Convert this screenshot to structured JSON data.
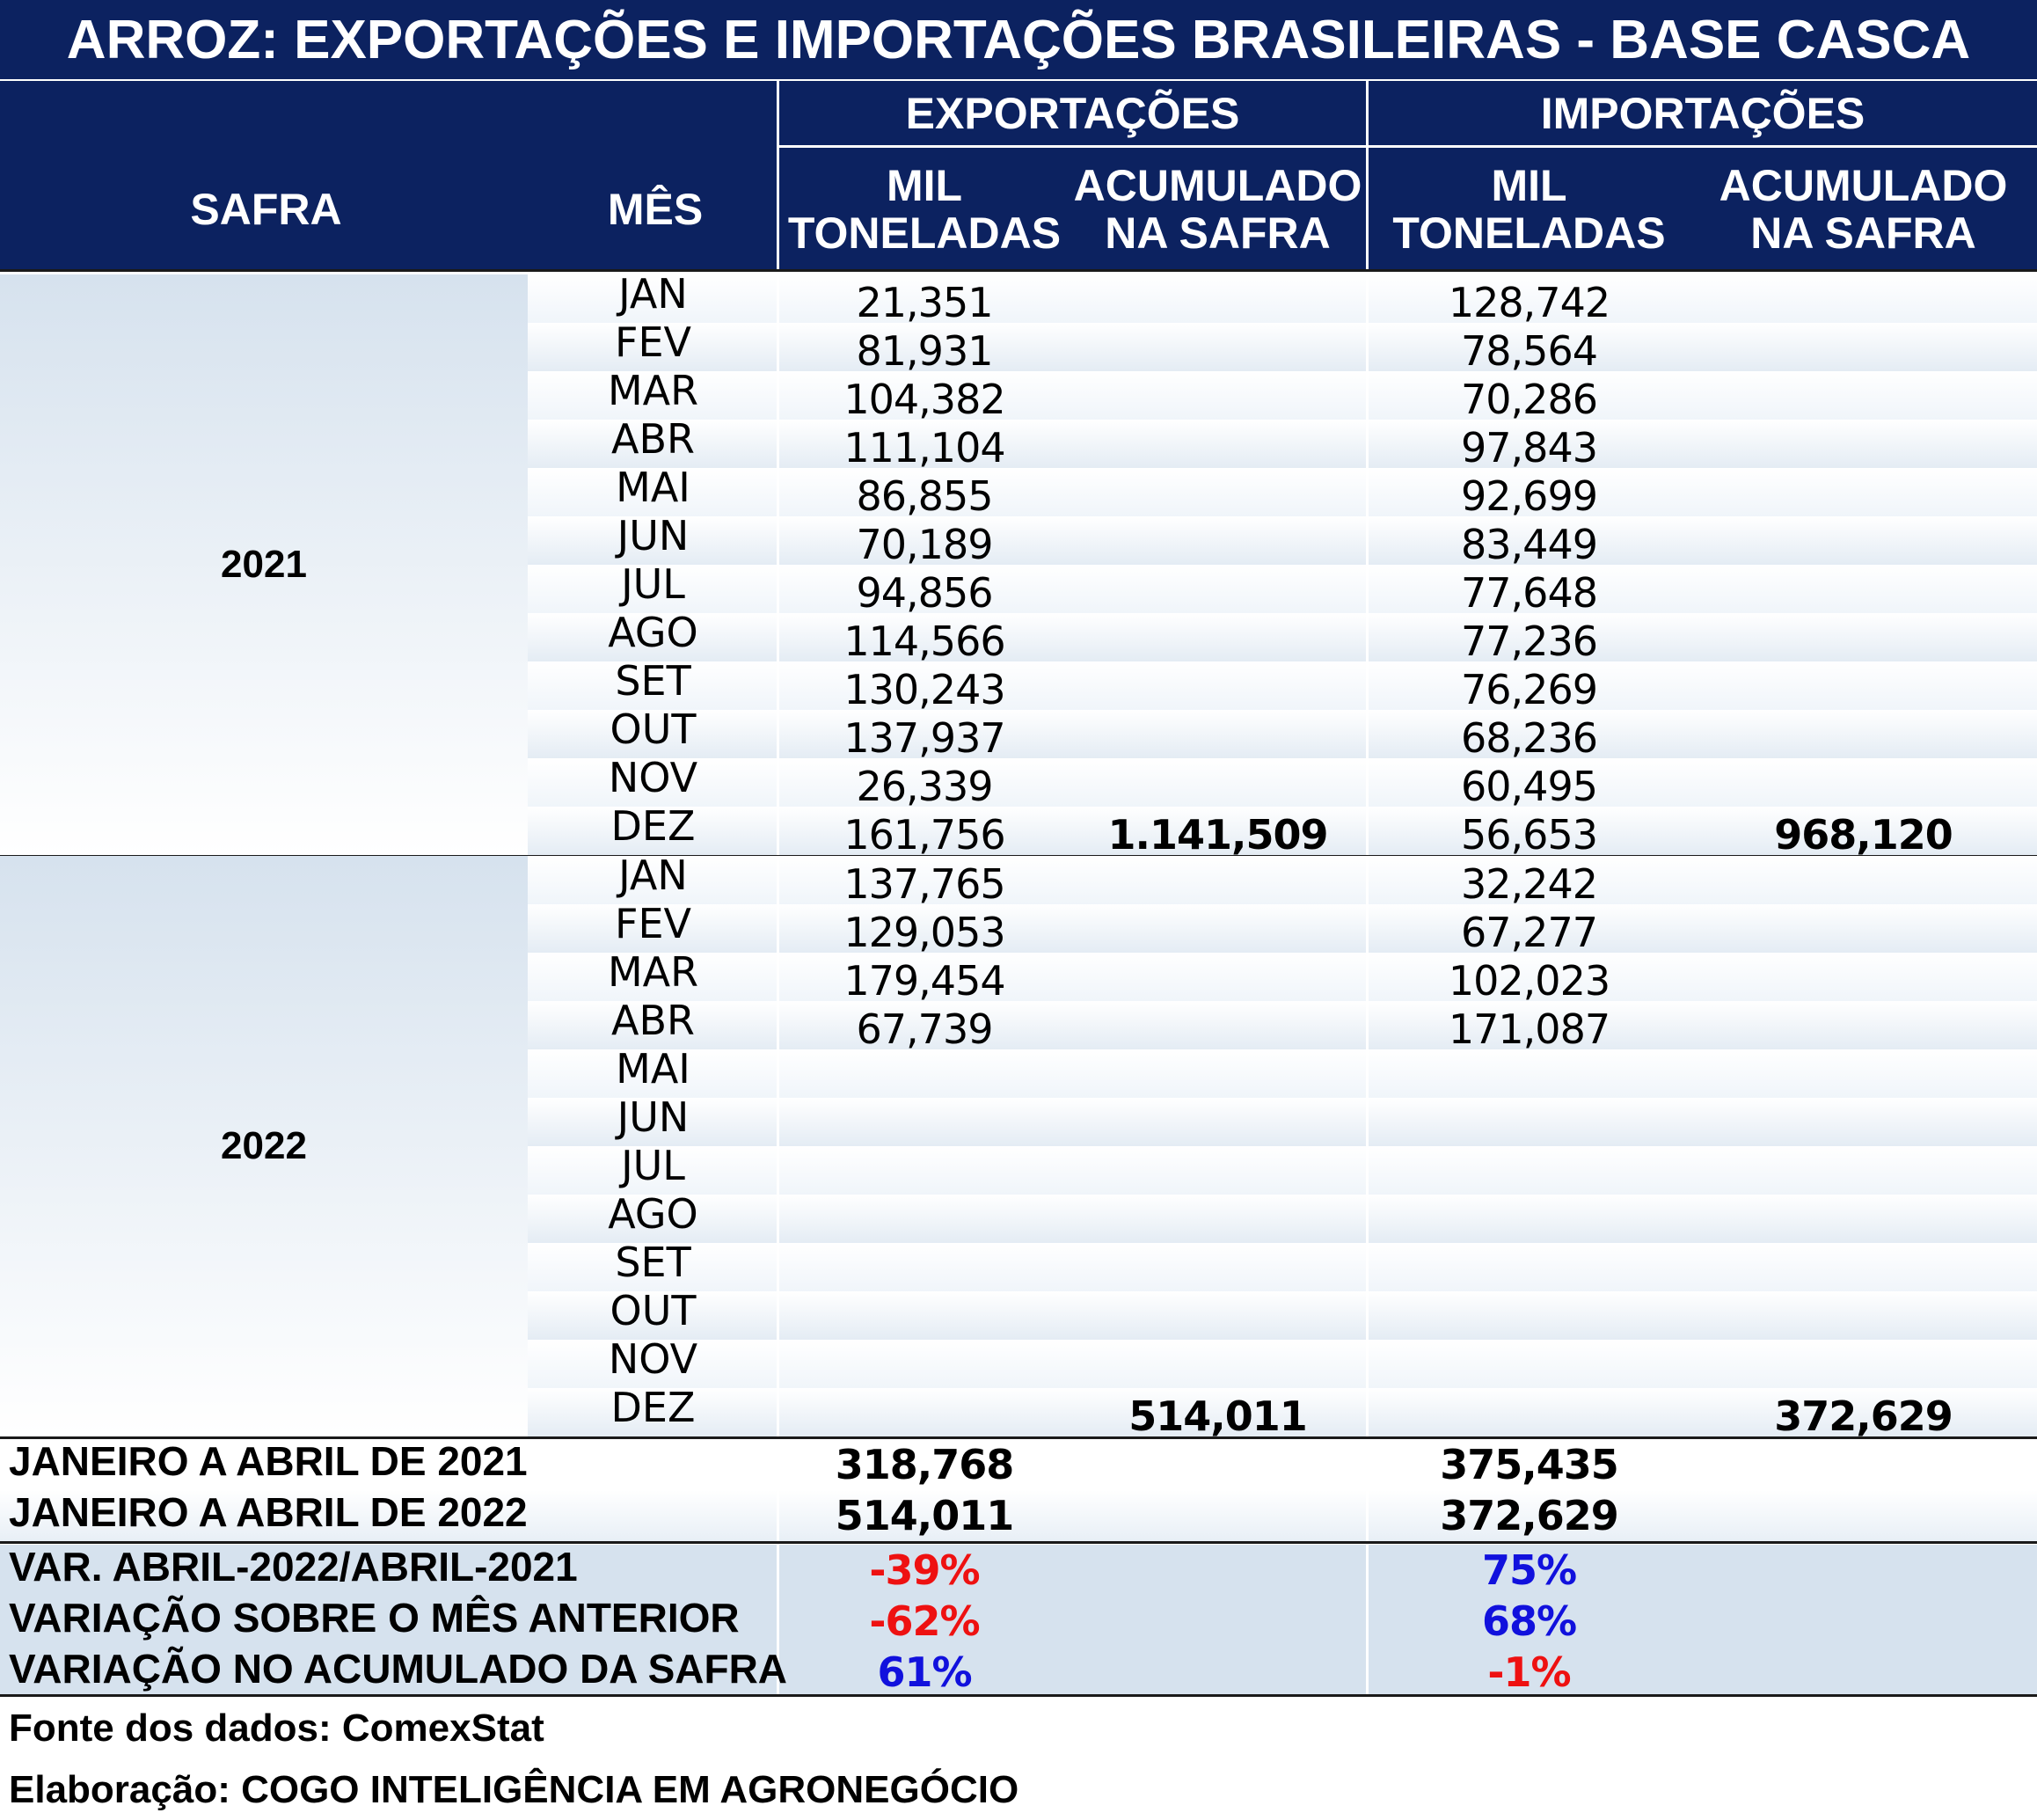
{
  "title": "ARROZ: EXPORTAÇÕES E IMPORTAÇÕES BRASILEIRAS - BASE CASCA",
  "headers": {
    "safra": "SAFRA",
    "mes": "MÊS",
    "exportacoes": "EXPORTAÇÕES",
    "importacoes": "IMPORTAÇÕES",
    "mil_line1": "MIL",
    "mil_line2": "TONELADAS",
    "acum_line1": "ACUMULADO",
    "acum_line2": "NA SAFRA"
  },
  "months": [
    "JAN",
    "FEV",
    "MAR",
    "ABR",
    "MAI",
    "JUN",
    "JUL",
    "AGO",
    "SET",
    "OUT",
    "NOV",
    "DEZ"
  ],
  "safras": [
    {
      "year": "2021",
      "export": [
        "21,351",
        "81,931",
        "104,382",
        "111,104",
        "86,855",
        "70,189",
        "94,856",
        "114,566",
        "130,243",
        "137,937",
        "26,339",
        "161,756"
      ],
      "import": [
        "128,742",
        "78,564",
        "70,286",
        "97,843",
        "92,699",
        "83,449",
        "77,648",
        "77,236",
        "76,269",
        "68,236",
        "60,495",
        "56,653"
      ],
      "export_acum": "1.141,509",
      "import_acum": "968,120"
    },
    {
      "year": "2022",
      "export": [
        "137,765",
        "129,053",
        "179,454",
        "67,739",
        "",
        "",
        "",
        "",
        "",
        "",
        "",
        ""
      ],
      "import": [
        "32,242",
        "67,277",
        "102,023",
        "171,087",
        "",
        "",
        "",
        "",
        "",
        "",
        "",
        ""
      ],
      "export_acum": "514,011",
      "import_acum": "372,629"
    }
  ],
  "summary": [
    {
      "label": "JANEIRO A ABRIL DE 2021",
      "export": "318,768",
      "import": "375,435"
    },
    {
      "label": "JANEIRO A ABRIL DE 2022",
      "export": "514,011",
      "import": "372,629"
    }
  ],
  "variations": [
    {
      "label": "VAR. ABRIL-2022/ABRIL-2021",
      "export": "-39%",
      "import": "75%"
    },
    {
      "label": "VARIAÇÃO SOBRE O MÊS ANTERIOR",
      "export": "-62%",
      "import": "68%"
    },
    {
      "label": "VARIAÇÃO NO ACUMULADO DA SAFRA",
      "export": "61%",
      "import": "-1%"
    }
  ],
  "footer": {
    "source": "Fonte dos dados: ComexStat",
    "author": "Elaboração: COGO INTELIGÊNCIA EM AGRONEGÓCIO"
  },
  "colors": {
    "header_bg": "#0c2260",
    "negative": "#ee1111",
    "positive": "#1111dd",
    "variation_bg": "#d6e2ee"
  }
}
